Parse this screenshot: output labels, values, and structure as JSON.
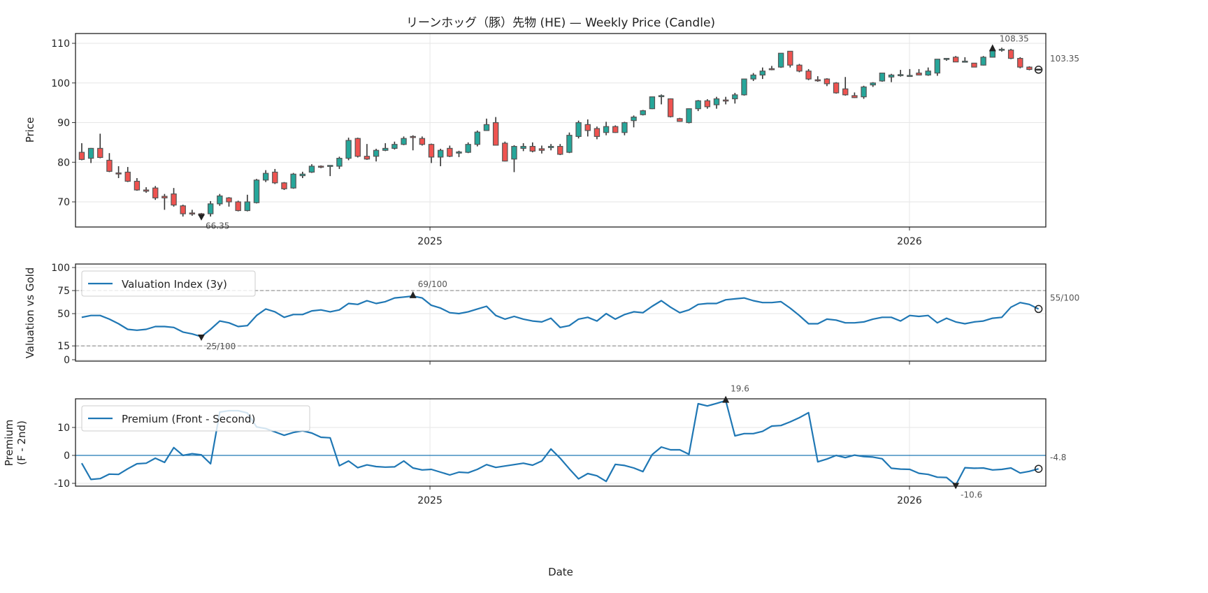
{
  "chart_data": [
    {
      "type": "candlestick",
      "title": "リーンホッグ（豚）先物 (HE) — Weekly Price (Candle)",
      "ylabel": "Price",
      "xlabel": "",
      "x_unit": "week index",
      "xlim": [
        -0.68,
        104.79
      ],
      "ylim": [
        63.66,
        112.47
      ],
      "yticks": [
        70,
        80,
        90,
        100,
        110
      ],
      "ytick_labels": [
        "70",
        "80",
        "90",
        "100",
        "110"
      ],
      "xticks": [
        37.85,
        89.97
      ],
      "xtick_labels": [
        "2025",
        "2026"
      ],
      "grid": true,
      "colors": {
        "up": "#26a69a",
        "down": "#ef5350",
        "edge": "#555555",
        "wick": "#333333"
      },
      "ohlc": [
        [
          82.5,
          84.8,
          80.5,
          80.7
        ],
        [
          81,
          83.6,
          79.8,
          83.5
        ],
        [
          83.5,
          87.2,
          81,
          81.2
        ],
        [
          80.5,
          82.3,
          77.5,
          77.7
        ],
        [
          77.3,
          79,
          76,
          77.1
        ],
        [
          77.5,
          78.8,
          75,
          75.2
        ],
        [
          75.2,
          76,
          72.8,
          73
        ],
        [
          73,
          73.7,
          72.3,
          72.7
        ],
        [
          73.5,
          74,
          70.5,
          71
        ],
        [
          71.4,
          72,
          68,
          71
        ],
        [
          72,
          73.5,
          68.8,
          69.2
        ],
        [
          69,
          69.3,
          66.3,
          67
        ],
        [
          67.2,
          68,
          66.5,
          67
        ],
        [
          67,
          67.2,
          66.35,
          66.6
        ],
        [
          67,
          70.2,
          66.3,
          69.5
        ],
        [
          69.5,
          72,
          69,
          71.5
        ],
        [
          71,
          71.2,
          68.8,
          70
        ],
        [
          70,
          70.3,
          67.6,
          67.8
        ],
        [
          67.8,
          71.8,
          67.6,
          70
        ],
        [
          69.8,
          75.8,
          69.6,
          75.5
        ],
        [
          75.5,
          78,
          75,
          77.2
        ],
        [
          77.5,
          78.3,
          74.5,
          74.8
        ],
        [
          74.8,
          75,
          73,
          73.3
        ],
        [
          73.5,
          77.3,
          73.3,
          77
        ],
        [
          76.6,
          77.6,
          76,
          77
        ],
        [
          77.5,
          79.5,
          77.3,
          79
        ],
        [
          79,
          79.2,
          78.5,
          78.9
        ],
        [
          79,
          79.2,
          76.5,
          79.2
        ],
        [
          79,
          81.4,
          78.3,
          81
        ],
        [
          81,
          86.2,
          80.5,
          85.5
        ],
        [
          86,
          86.2,
          81.2,
          81.5
        ],
        [
          81.5,
          84.6,
          80.6,
          80.8
        ],
        [
          81.5,
          83.4,
          80.2,
          83
        ],
        [
          83,
          84.8,
          82.8,
          83.5
        ],
        [
          83.5,
          85.2,
          83.2,
          84.5
        ],
        [
          84.5,
          86.5,
          84.3,
          86
        ],
        [
          86.5,
          86.8,
          83,
          86.4
        ],
        [
          86,
          86.5,
          84.2,
          84.5
        ],
        [
          84.5,
          84.7,
          79.8,
          81.3
        ],
        [
          81.3,
          83.4,
          79,
          83
        ],
        [
          83.5,
          84.2,
          81.3,
          81.5
        ],
        [
          82.3,
          82.9,
          81.3,
          82.6
        ],
        [
          82.5,
          85,
          82.3,
          84.5
        ],
        [
          84.5,
          88,
          84,
          87.6
        ],
        [
          88,
          91,
          88,
          89.5
        ],
        [
          90,
          91.4,
          84.3,
          84.3
        ],
        [
          84.8,
          85.2,
          80.2,
          80.3
        ],
        [
          80.8,
          84.3,
          77.5,
          84
        ],
        [
          83.5,
          84.8,
          82.8,
          84
        ],
        [
          84,
          85,
          82.5,
          82.8
        ],
        [
          83.4,
          84.2,
          82.2,
          83
        ],
        [
          83.7,
          84.6,
          83,
          84
        ],
        [
          84,
          84.6,
          81.8,
          82
        ],
        [
          82.5,
          87.5,
          82.3,
          86.8
        ],
        [
          86.5,
          90.5,
          86,
          90
        ],
        [
          89.5,
          90.8,
          86.5,
          88
        ],
        [
          88.5,
          89,
          85.8,
          86.5
        ],
        [
          87.5,
          90.2,
          86.8,
          89
        ],
        [
          89,
          89.3,
          87.4,
          87.5
        ],
        [
          87.5,
          90.2,
          86.8,
          90
        ],
        [
          90.5,
          91.8,
          88.8,
          91.4
        ],
        [
          92,
          93.2,
          91.8,
          93
        ],
        [
          93.5,
          96.5,
          93.4,
          96.5
        ],
        [
          96.8,
          97.1,
          94.6,
          96.8
        ],
        [
          96,
          96.1,
          91.3,
          91.5
        ],
        [
          91,
          91.2,
          90.2,
          90.3
        ],
        [
          90,
          93.6,
          89.8,
          93.5
        ],
        [
          93.5,
          95.7,
          92.9,
          95.5
        ],
        [
          95.5,
          95.9,
          93.5,
          94
        ],
        [
          94.5,
          96.5,
          93.5,
          96
        ],
        [
          95.7,
          96.5,
          94.6,
          95.6
        ],
        [
          96,
          97.5,
          94.8,
          97
        ],
        [
          97,
          101,
          96.8,
          101
        ],
        [
          101,
          102.5,
          100.5,
          102
        ],
        [
          102,
          103.9,
          101,
          103
        ],
        [
          103.6,
          104.3,
          103.2,
          103.5
        ],
        [
          104,
          107.5,
          103.8,
          107.5
        ],
        [
          108,
          108,
          103.9,
          104.5
        ],
        [
          104.5,
          104.8,
          102.7,
          103
        ],
        [
          103,
          103.5,
          100.7,
          101
        ],
        [
          100.8,
          101.7,
          100.3,
          100.6
        ],
        [
          101,
          101.2,
          99.2,
          99.8
        ],
        [
          100,
          100.2,
          97.3,
          97.5
        ],
        [
          98.5,
          101.5,
          96.8,
          97
        ],
        [
          96.8,
          97.6,
          96.2,
          96.3
        ],
        [
          96.5,
          99.3,
          96,
          99
        ],
        [
          99.5,
          100.2,
          99,
          100
        ],
        [
          100.5,
          102.6,
          100.3,
          102.5
        ],
        [
          101.5,
          102.3,
          100.2,
          102
        ],
        [
          102,
          103.3,
          101.6,
          102.1
        ],
        [
          101.8,
          103.5,
          101.6,
          101.9
        ],
        [
          102.5,
          103.5,
          102,
          102
        ],
        [
          102,
          103.9,
          101.8,
          103
        ],
        [
          102.5,
          106,
          101.8,
          106
        ],
        [
          106.2,
          106.3,
          105.6,
          106.2
        ],
        [
          106.5,
          106.8,
          105.3,
          105.3
        ],
        [
          105.5,
          106.5,
          105.3,
          105.5
        ],
        [
          105,
          105,
          104,
          104
        ],
        [
          104.5,
          106.8,
          104.4,
          106.5
        ],
        [
          106.5,
          108.35,
          106.4,
          108.3
        ],
        [
          108.5,
          108.9,
          107.9,
          108.5
        ],
        [
          108.3,
          108.6,
          106,
          106.2
        ],
        [
          106.2,
          106.5,
          103.7,
          104
        ],
        [
          104,
          104.2,
          103.2,
          103.4
        ],
        [
          103.5,
          103.5,
          103.2,
          103.35
        ]
      ],
      "annotations": {
        "max": {
          "index": 99,
          "value": 108.35,
          "label": "108.35"
        },
        "min": {
          "index": 13,
          "value": 66.35,
          "label": "66.35"
        },
        "last": {
          "index": 104,
          "value": 103.35,
          "label": "103.35"
        }
      }
    },
    {
      "type": "line",
      "ylabel": "Valuation vs Gold",
      "xlim": [
        -0.68,
        104.79
      ],
      "ylim": [
        -1.5,
        103.8
      ],
      "yticks": [
        0,
        15,
        50,
        75,
        100
      ],
      "ytick_labels": [
        "0",
        "15",
        "50",
        "75",
        "100"
      ],
      "xticks": [
        37.85,
        89.97
      ],
      "reference_lines": [
        75,
        15
      ],
      "legend": {
        "label": "Valuation Index (3y)",
        "placement": "upper-left"
      },
      "color": "#1f77b4",
      "values": [
        46,
        48,
        48,
        44,
        39,
        33,
        32,
        33,
        36,
        36,
        35,
        30,
        28,
        25,
        33,
        42,
        40,
        36,
        37,
        48,
        55,
        52,
        46,
        49,
        49,
        53,
        54,
        52,
        54,
        61,
        60,
        64,
        61,
        63,
        67,
        68,
        69,
        67,
        59,
        56,
        51,
        50,
        52,
        55,
        58,
        48,
        44,
        47,
        44,
        42,
        41,
        45,
        35,
        37,
        44,
        46,
        42,
        50,
        44,
        49,
        52,
        51,
        58,
        64,
        57,
        51,
        54,
        60,
        61,
        61,
        65,
        66,
        67,
        64,
        62,
        62,
        63,
        56,
        48,
        39,
        39,
        44,
        43,
        40,
        40,
        41,
        44,
        46,
        46,
        42,
        48,
        47,
        48,
        40,
        45,
        41,
        39,
        41,
        42,
        45,
        46,
        57,
        62,
        60,
        55
      ],
      "annotations": {
        "max": {
          "index": 36,
          "value": 69,
          "label": "69/100"
        },
        "min": {
          "index": 13,
          "value": 25,
          "label": "25/100"
        },
        "last": {
          "index": 104,
          "value": 55,
          "label": "55/100"
        }
      }
    },
    {
      "type": "line",
      "ylabel": "Premium",
      "ylabel2": "(F - 2nd)",
      "xlabel": "Date",
      "xlim": [
        -0.68,
        104.79
      ],
      "ylim": [
        -11,
        20.25
      ],
      "yticks": [
        -10,
        0,
        10
      ],
      "ytick_labels": [
        "-10",
        "0",
        "10"
      ],
      "xticks": [
        37.85,
        89.97
      ],
      "xtick_labels": [
        "2025",
        "2026"
      ],
      "reference_lines": [
        0
      ],
      "legend": {
        "label": "Premium (Front - Second)",
        "placement": "upper-left"
      },
      "color": "#1f77b4",
      "values": [
        -2.8,
        -8.6,
        -8.3,
        -6.7,
        -6.8,
        -4.8,
        -3,
        -2.8,
        -1,
        -2.5,
        2.8,
        0,
        0.6,
        0.2,
        -3,
        15.5,
        16,
        16,
        15.2,
        10.2,
        9.6,
        8.4,
        7.2,
        8.2,
        8.8,
        8,
        6.5,
        6.3,
        -3.7,
        -2,
        -4.4,
        -3.4,
        -4,
        -4.2,
        -4.1,
        -2,
        -4.5,
        -5.2,
        -5,
        -6,
        -7,
        -6,
        -6.2,
        -5,
        -3.3,
        -4.3,
        -3.8,
        -3.3,
        -2.8,
        -3.5,
        -2,
        2.3,
        -1,
        -4.8,
        -8.4,
        -6.5,
        -7.3,
        -9.3,
        -3.2,
        -3.6,
        -4.5,
        -5.8,
        0.3,
        3,
        2,
        2,
        0.4,
        18.5,
        17.7,
        18.6,
        19.6,
        7,
        7.8,
        7.8,
        8.6,
        10.5,
        10.7,
        12,
        13.5,
        15.3,
        -2.3,
        -1.3,
        0,
        -0.8,
        0.1,
        -0.4,
        -0.6,
        -1.2,
        -4.6,
        -4.9,
        -5,
        -6.4,
        -6.8,
        -7.8,
        -7.9,
        -10.6,
        -4.4,
        -4.6,
        -4.5,
        -5.2,
        -5,
        -4.5,
        -6.3,
        -5.7,
        -4.8
      ],
      "annotations": {
        "max": {
          "index": 70,
          "value": 19.6,
          "label": "19.6"
        },
        "min": {
          "index": 95,
          "value": -10.6,
          "label": "-10.6"
        },
        "last": {
          "index": 104,
          "value": -4.8,
          "label": "-4.8"
        }
      }
    }
  ]
}
